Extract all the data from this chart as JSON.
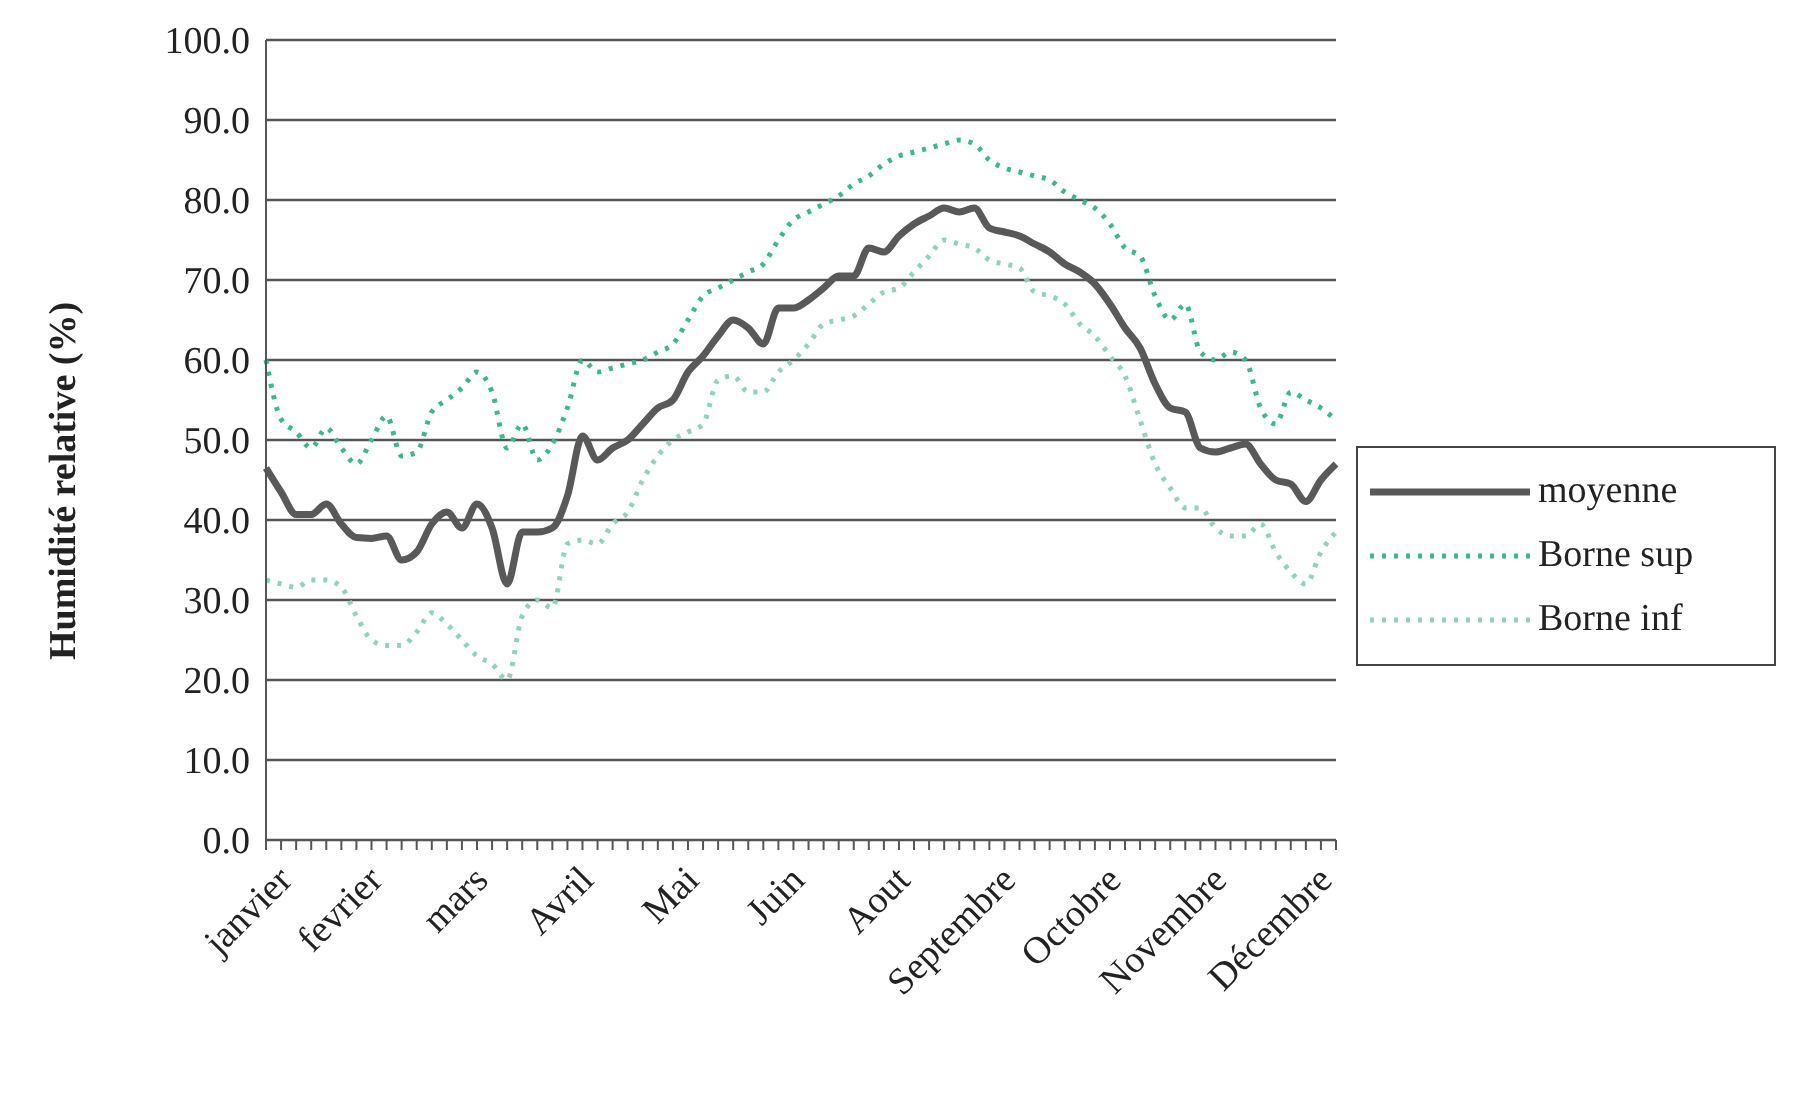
{
  "chart_data": {
    "type": "line",
    "ylabel": "Humidité relative (%)",
    "categories": [
      "janvier",
      null,
      null,
      null,
      null,
      null,
      "fevrier",
      null,
      null,
      null,
      null,
      null,
      null,
      "mars",
      null,
      null,
      null,
      null,
      null,
      null,
      "Avril",
      null,
      null,
      null,
      null,
      null,
      null,
      "Mai",
      null,
      null,
      null,
      null,
      null,
      null,
      "Juin",
      null,
      null,
      null,
      null,
      null,
      null,
      "Aout",
      null,
      null,
      null,
      null,
      null,
      null,
      "Septembre",
      null,
      null,
      null,
      null,
      null,
      null,
      "Octobre",
      null,
      null,
      null,
      null,
      null,
      null,
      "Novembre",
      null,
      null,
      null,
      null,
      null,
      null,
      "Décembre",
      null,
      null
    ],
    "series": [
      {
        "name": "moyenne",
        "color": "#595959",
        "line_style": "solid",
        "values": [
          46.5,
          43.5,
          40.7,
          40.7,
          42,
          39.5,
          37.8,
          37.7,
          38,
          35,
          36,
          39.5,
          41,
          39,
          42,
          39,
          32,
          38.5,
          38.5,
          39,
          43,
          50.5,
          47.5,
          49,
          50,
          52,
          54,
          55,
          58.5,
          60.5,
          63,
          65,
          64,
          62,
          66.5,
          66.5,
          67.5,
          69,
          70.5,
          70.5,
          74,
          73.5,
          75.5,
          77,
          78,
          79,
          78.5,
          79,
          76.5,
          76,
          75.5,
          74.5,
          73.5,
          72,
          71,
          69.5,
          67,
          64,
          61.5,
          57,
          54,
          53.5,
          49,
          48.5,
          49,
          49.5,
          47,
          45,
          44.5,
          42.3,
          45,
          47
        ]
      },
      {
        "name": "Borne sup",
        "color": "#3cb88a",
        "line_style": "dotted",
        "values": [
          60,
          52.6,
          51,
          49,
          51.5,
          49,
          47,
          50,
          53,
          48,
          48.5,
          53.5,
          55,
          56.5,
          58.5,
          56,
          49,
          52,
          47.5,
          49.5,
          54,
          60,
          58.5,
          59,
          59.5,
          60,
          61,
          62,
          65,
          68,
          69,
          70,
          71,
          72,
          75,
          77.5,
          78.5,
          79.5,
          80.5,
          82,
          83,
          84.5,
          85.5,
          86,
          86.5,
          87,
          87.5,
          87,
          85,
          84,
          83.5,
          83,
          82.5,
          81,
          80,
          79,
          77,
          74,
          73,
          68,
          65,
          67,
          61,
          60,
          61,
          60,
          54,
          52,
          56,
          55,
          54,
          52.5
        ]
      },
      {
        "name": "Borne inf",
        "color": "#8fd3b8",
        "line_style": "dotted",
        "values": [
          32.5,
          32,
          31.6,
          32.5,
          32.5,
          31.6,
          28,
          25,
          24.3,
          24.3,
          26,
          28.4,
          27,
          25,
          23,
          22,
          20,
          28,
          30,
          29,
          37,
          37.5,
          37,
          39.5,
          41,
          45,
          48,
          50,
          51,
          52,
          57.5,
          58,
          56,
          56,
          58.5,
          60,
          62,
          64.5,
          65,
          65.5,
          67,
          68.5,
          69,
          71,
          73,
          75,
          74.5,
          74,
          72.5,
          72,
          71.5,
          68.5,
          68,
          67,
          64.5,
          63,
          60.5,
          58,
          52.5,
          47,
          44,
          41.5,
          41.5,
          39,
          38,
          38,
          39.5,
          36,
          33.5,
          32,
          36,
          38.5
        ]
      }
    ],
    "ylim": [
      0,
      100
    ],
    "yticks": [
      {
        "value": 0,
        "label": "0.0"
      },
      {
        "value": 10,
        "label": "10.0"
      },
      {
        "value": 20,
        "label": "20.0"
      },
      {
        "value": 30,
        "label": "30.0"
      },
      {
        "value": 40,
        "label": "40.0"
      },
      {
        "value": 50,
        "label": "50.0"
      },
      {
        "value": 60,
        "label": "60.0"
      },
      {
        "value": 70,
        "label": "70.0"
      },
      {
        "value": 80,
        "label": "80.0"
      },
      {
        "value": 90,
        "label": "90.0"
      },
      {
        "value": 100,
        "label": "100.0"
      }
    ],
    "grid": "y",
    "legend": "right",
    "marker": "none"
  }
}
